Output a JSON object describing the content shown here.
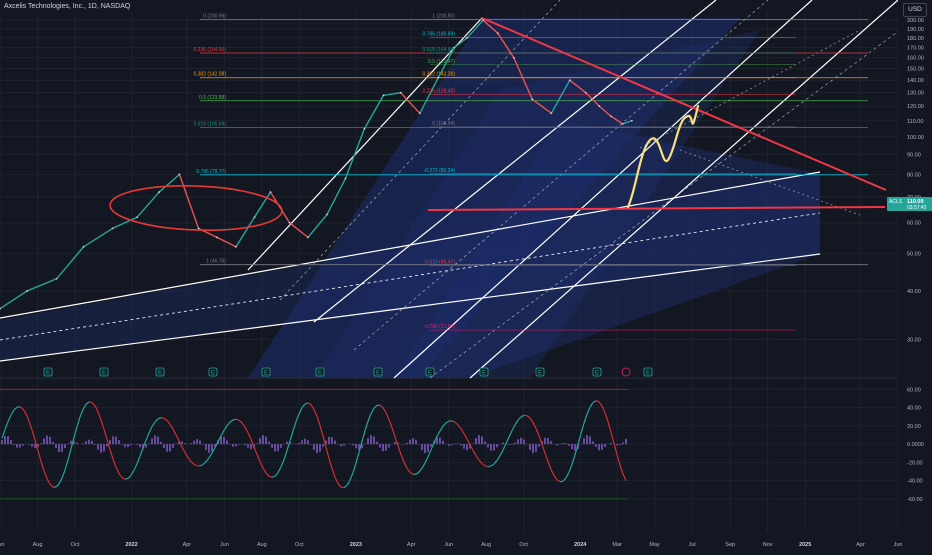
{
  "header": {
    "symbol_title": "Axcelis Technologies, Inc., 1D, NASDAQ",
    "currency": "USD"
  },
  "price_badge": {
    "symbol": "ACLS",
    "price": "110.09",
    "countdown": "03:57:42",
    "color": "#26a69a"
  },
  "colors": {
    "background": "#131722",
    "grid": "#1e222d",
    "channel_fill": "#1e2e6e",
    "channel_line": "#ffffff",
    "trendline_red": "#f23645",
    "projection_yellow": "#f9e27d",
    "circle_red": "#e53935",
    "macd_line_up": "#26a69a",
    "macd_line_down": "#d32f2f",
    "histogram": "#7e57c2"
  },
  "chart_data": [
    {
      "type": "line",
      "title": "Axcelis Technologies, Inc., 1D, NASDAQ",
      "y_scale": "log",
      "ylim": [
        25,
        210
      ],
      "y_ticks": [
        200,
        190,
        180,
        170,
        160,
        150,
        140,
        130,
        120,
        110,
        100,
        90,
        80,
        70,
        60,
        50,
        40,
        30
      ],
      "y_tick_labels": [
        "200.00",
        "190.00",
        "180.00",
        "170.00",
        "160.00",
        "150.00",
        "140.00",
        "130.00",
        "120.00",
        "110.00",
        "100.00",
        "90.00",
        "80.00",
        "70.00",
        "60.00",
        "50.00",
        "40.00",
        "30.00"
      ],
      "x_tick_labels": [
        "Jun",
        "Aug",
        "Oct",
        "2022",
        "Apr",
        "Jun",
        "Aug",
        "Oct",
        "2023",
        "Apr",
        "Jun",
        "Aug",
        "Oct",
        "2024",
        "Mar",
        "May",
        "Jul",
        "Sep",
        "Nov",
        "2025",
        "Apr",
        "Jun"
      ],
      "series": [
        {
          "x": [
            "2021-06-01",
            "2021-07-15",
            "2021-09-01",
            "2021-10-15",
            "2021-12-01",
            "2022-01-10",
            "2022-02-15",
            "2022-03-20",
            "2022-04-20",
            "2022-05-20",
            "2022-06-20",
            "2022-07-20",
            "2022-08-15",
            "2022-09-15",
            "2022-10-15",
            "2022-11-15",
            "2022-12-15",
            "2023-01-15",
            "2023-02-15",
            "2023-03-15",
            "2023-04-15",
            "2023-05-15",
            "2023-06-10",
            "2023-07-01",
            "2023-07-27",
            "2023-08-20",
            "2023-09-15",
            "2023-10-15",
            "2023-11-15",
            "2023-12-15",
            "2024-01-10",
            "2024-02-01",
            "2024-02-20",
            "2024-03-10",
            "2024-03-25"
          ],
          "y": [
            36,
            40,
            43,
            52,
            58,
            62,
            72,
            80,
            58,
            55,
            52,
            62,
            72,
            60,
            55,
            63,
            78,
            105,
            128,
            130,
            115,
            142,
            170,
            180,
            200,
            185,
            160,
            125,
            115,
            140,
            130,
            120,
            113,
            108,
            110
          ]
        }
      ],
      "fibonacci_levels": [
        {
          "label": "0 (200.99)",
          "value": 200.99
        },
        {
          "label": "0.236 (164.60)",
          "value": 164.6
        },
        {
          "label": "0.382 (142.08)",
          "value": 142.08
        },
        {
          "label": "0.5 (123.88)",
          "value": 123.88
        },
        {
          "label": "0.618 (105.68)",
          "value": 105.68
        },
        {
          "label": "0.786 (79.77)",
          "value": 79.77
        },
        {
          "label": "1 (46.76)",
          "value": 46.76
        }
      ],
      "fibonacci_levels_2": [
        {
          "label": "1 (200.90)",
          "value": 200.9
        },
        {
          "label": "0.786 (180.69)",
          "value": 180.69
        },
        {
          "label": "0.618 (164.66)",
          "value": 164.66
        },
        {
          "label": "0.5 (153.47)",
          "value": 153.47
        },
        {
          "label": "0.382 (142.28)",
          "value": 142.28
        },
        {
          "label": "0.236 (128.43)",
          "value": 128.43
        },
        {
          "label": "0 (106.04)",
          "value": 106.04
        },
        {
          "label": "-0.272 (80.24)",
          "value": 80.24
        },
        {
          "label": "-0.618 (46.47)",
          "value": 46.47
        },
        {
          "label": "-0.786 (31.69)",
          "value": 31.69
        }
      ],
      "event_markers": [
        "E",
        "E",
        "E",
        "E",
        "E",
        "E",
        "E",
        "E",
        "E",
        "E",
        "E",
        "E"
      ]
    },
    {
      "type": "line",
      "ylim": [
        -70,
        68
      ],
      "y_ticks": [
        60,
        40,
        20,
        0,
        -20,
        -40,
        -60
      ],
      "y_tick_labels": [
        "60.00",
        "40.00",
        "20.00",
        "0.0000",
        "-20.00",
        "-40.00",
        "-60.00"
      ]
    }
  ]
}
